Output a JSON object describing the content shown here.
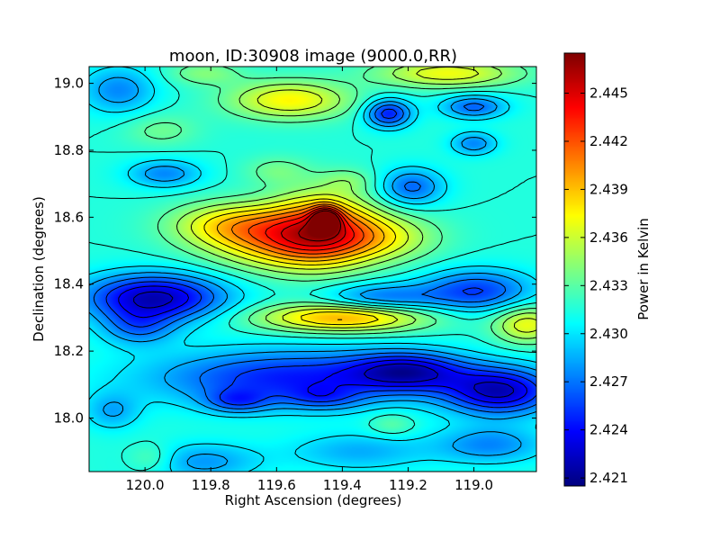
{
  "chart_data": {
    "type": "heatmap",
    "title": "moon, ID:30908 image (9000.0,RR)",
    "xlabel": "Right Ascension (degrees)",
    "ylabel": "Declination (degrees)",
    "colorbar_label": "Power in Kelvin",
    "colormap": "jet",
    "x_inverted": true,
    "xlim": [
      120.17,
      118.81
    ],
    "ylim": [
      17.84,
      19.05
    ],
    "x_ticks": [
      {
        "value": 120.0,
        "label": "120.0"
      },
      {
        "value": 119.8,
        "label": "119.8"
      },
      {
        "value": 119.6,
        "label": "119.6"
      },
      {
        "value": 119.4,
        "label": "119.4"
      },
      {
        "value": 119.2,
        "label": "119.2"
      },
      {
        "value": 119.0,
        "label": "119.0"
      }
    ],
    "y_ticks": [
      {
        "value": 18.0,
        "label": "18.0"
      },
      {
        "value": 18.2,
        "label": "18.2"
      },
      {
        "value": 18.4,
        "label": "18.4"
      },
      {
        "value": 18.6,
        "label": "18.6"
      },
      {
        "value": 18.8,
        "label": "18.8"
      },
      {
        "value": 19.0,
        "label": "19.0"
      }
    ],
    "color_range": [
      2.4205,
      2.4475
    ],
    "colorbar_ticks": [
      {
        "value": 2.421,
        "label": "2.421"
      },
      {
        "value": 2.424,
        "label": "2.424"
      },
      {
        "value": 2.427,
        "label": "2.427"
      },
      {
        "value": 2.43,
        "label": "2.430"
      },
      {
        "value": 2.433,
        "label": "2.433"
      },
      {
        "value": 2.436,
        "label": "2.436"
      },
      {
        "value": 2.439,
        "label": "2.439"
      },
      {
        "value": 2.442,
        "label": "2.442"
      },
      {
        "value": 2.445,
        "label": "2.445"
      }
    ],
    "contours": true,
    "background_level": 2.4315,
    "features": [
      {
        "ra": 119.45,
        "dec": 18.595,
        "s_ra": 0.03,
        "s_dec": 0.025,
        "amp": 0.009
      },
      {
        "ra": 119.46,
        "dec": 18.57,
        "s_ra": 0.11,
        "s_dec": 0.075,
        "amp": 0.0085
      },
      {
        "ra": 119.58,
        "dec": 18.53,
        "s_ra": 0.16,
        "s_dec": 0.06,
        "amp": 0.0075
      },
      {
        "ra": 119.74,
        "dec": 18.58,
        "s_ra": 0.13,
        "s_dec": 0.045,
        "amp": 0.005
      },
      {
        "ra": 119.28,
        "dec": 18.54,
        "s_ra": 0.12,
        "s_dec": 0.05,
        "amp": 0.0045
      },
      {
        "ra": 119.4,
        "dec": 18.3,
        "s_ra": 0.18,
        "s_dec": 0.03,
        "amp": 0.008
      },
      {
        "ra": 118.84,
        "dec": 18.28,
        "s_ra": 0.07,
        "s_dec": 0.04,
        "amp": 0.0055
      },
      {
        "ra": 119.56,
        "dec": 18.95,
        "s_ra": 0.13,
        "s_dec": 0.04,
        "amp": 0.006
      },
      {
        "ra": 119.08,
        "dec": 19.03,
        "s_ra": 0.15,
        "s_dec": 0.03,
        "amp": 0.0055
      },
      {
        "ra": 119.82,
        "dec": 19.03,
        "s_ra": 0.08,
        "s_dec": 0.025,
        "amp": 0.0025
      },
      {
        "ra": 119.97,
        "dec": 18.36,
        "s_ra": 0.15,
        "s_dec": 0.05,
        "amp": -0.0095
      },
      {
        "ra": 118.99,
        "dec": 18.38,
        "s_ra": 0.12,
        "s_dec": 0.045,
        "amp": -0.006
      },
      {
        "ra": 119.28,
        "dec": 18.36,
        "s_ra": 0.12,
        "s_dec": 0.03,
        "amp": -0.0045
      },
      {
        "ra": 119.55,
        "dec": 18.12,
        "s_ra": 0.3,
        "s_dec": 0.06,
        "amp": -0.007
      },
      {
        "ra": 119.72,
        "dec": 18.05,
        "s_ra": 0.07,
        "s_dec": 0.025,
        "amp": -0.004
      },
      {
        "ra": 119.46,
        "dec": 18.06,
        "s_ra": 0.08,
        "s_dec": 0.025,
        "amp": -0.003
      },
      {
        "ra": 118.92,
        "dec": 18.08,
        "s_ra": 0.12,
        "s_dec": 0.05,
        "amp": -0.009
      },
      {
        "ra": 119.2,
        "dec": 18.14,
        "s_ra": 0.12,
        "s_dec": 0.04,
        "amp": -0.007
      },
      {
        "ra": 119.26,
        "dec": 18.91,
        "s_ra": 0.05,
        "s_dec": 0.03,
        "amp": -0.007
      },
      {
        "ra": 119.0,
        "dec": 18.93,
        "s_ra": 0.07,
        "s_dec": 0.025,
        "amp": -0.005
      },
      {
        "ra": 119.0,
        "dec": 18.82,
        "s_ra": 0.05,
        "s_dec": 0.025,
        "amp": -0.004
      },
      {
        "ra": 119.19,
        "dec": 18.69,
        "s_ra": 0.07,
        "s_dec": 0.04,
        "amp": -0.005
      },
      {
        "ra": 119.94,
        "dec": 18.73,
        "s_ra": 0.08,
        "s_dec": 0.03,
        "amp": -0.004
      },
      {
        "ra": 120.08,
        "dec": 18.98,
        "s_ra": 0.08,
        "s_dec": 0.05,
        "amp": -0.004
      },
      {
        "ra": 120.02,
        "dec": 18.27,
        "s_ra": 0.08,
        "s_dec": 0.04,
        "amp": -0.004
      },
      {
        "ra": 119.82,
        "dec": 17.87,
        "s_ra": 0.12,
        "s_dec": 0.04,
        "amp": -0.0035
      },
      {
        "ra": 119.35,
        "dec": 17.9,
        "s_ra": 0.15,
        "s_dec": 0.04,
        "amp": -0.003
      },
      {
        "ra": 118.95,
        "dec": 17.92,
        "s_ra": 0.12,
        "s_dec": 0.04,
        "amp": -0.004
      },
      {
        "ra": 120.1,
        "dec": 18.02,
        "s_ra": 0.06,
        "s_dec": 0.04,
        "amp": -0.003
      },
      {
        "ra": 119.95,
        "dec": 18.86,
        "s_ra": 0.08,
        "s_dec": 0.035,
        "amp": 0.002
      },
      {
        "ra": 119.6,
        "dec": 18.74,
        "s_ra": 0.07,
        "s_dec": 0.03,
        "amp": 0.002
      },
      {
        "ra": 119.38,
        "dec": 18.71,
        "s_ra": 0.06,
        "s_dec": 0.025,
        "amp": 0.0018
      },
      {
        "ra": 119.98,
        "dec": 17.88,
        "s_ra": 0.05,
        "s_dec": 0.03,
        "amp": 0.002
      },
      {
        "ra": 119.25,
        "dec": 17.98,
        "s_ra": 0.05,
        "s_dec": 0.025,
        "amp": 0.002
      }
    ]
  }
}
